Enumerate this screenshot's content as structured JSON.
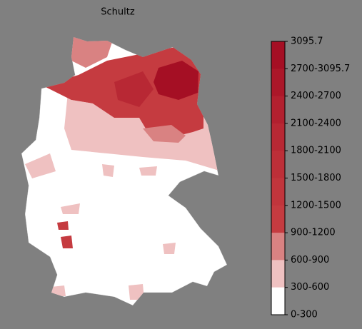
{
  "title": "Schultz",
  "legend": {
    "labels": [
      "3095.7",
      "2700-3095.7",
      "2400-2700",
      "2100-2400",
      "1800-2100",
      "1500-1800",
      "1200-1500",
      "900-1200",
      "600-900",
      "300-600",
      "0-300"
    ],
    "colors": [
      "#a50f24",
      "#ab1729",
      "#b2202f",
      "#b82834",
      "#bd2f38",
      "#c1353c",
      "#c53b40",
      "#d98282",
      "#efc1c1",
      "#ffffff"
    ]
  }
}
